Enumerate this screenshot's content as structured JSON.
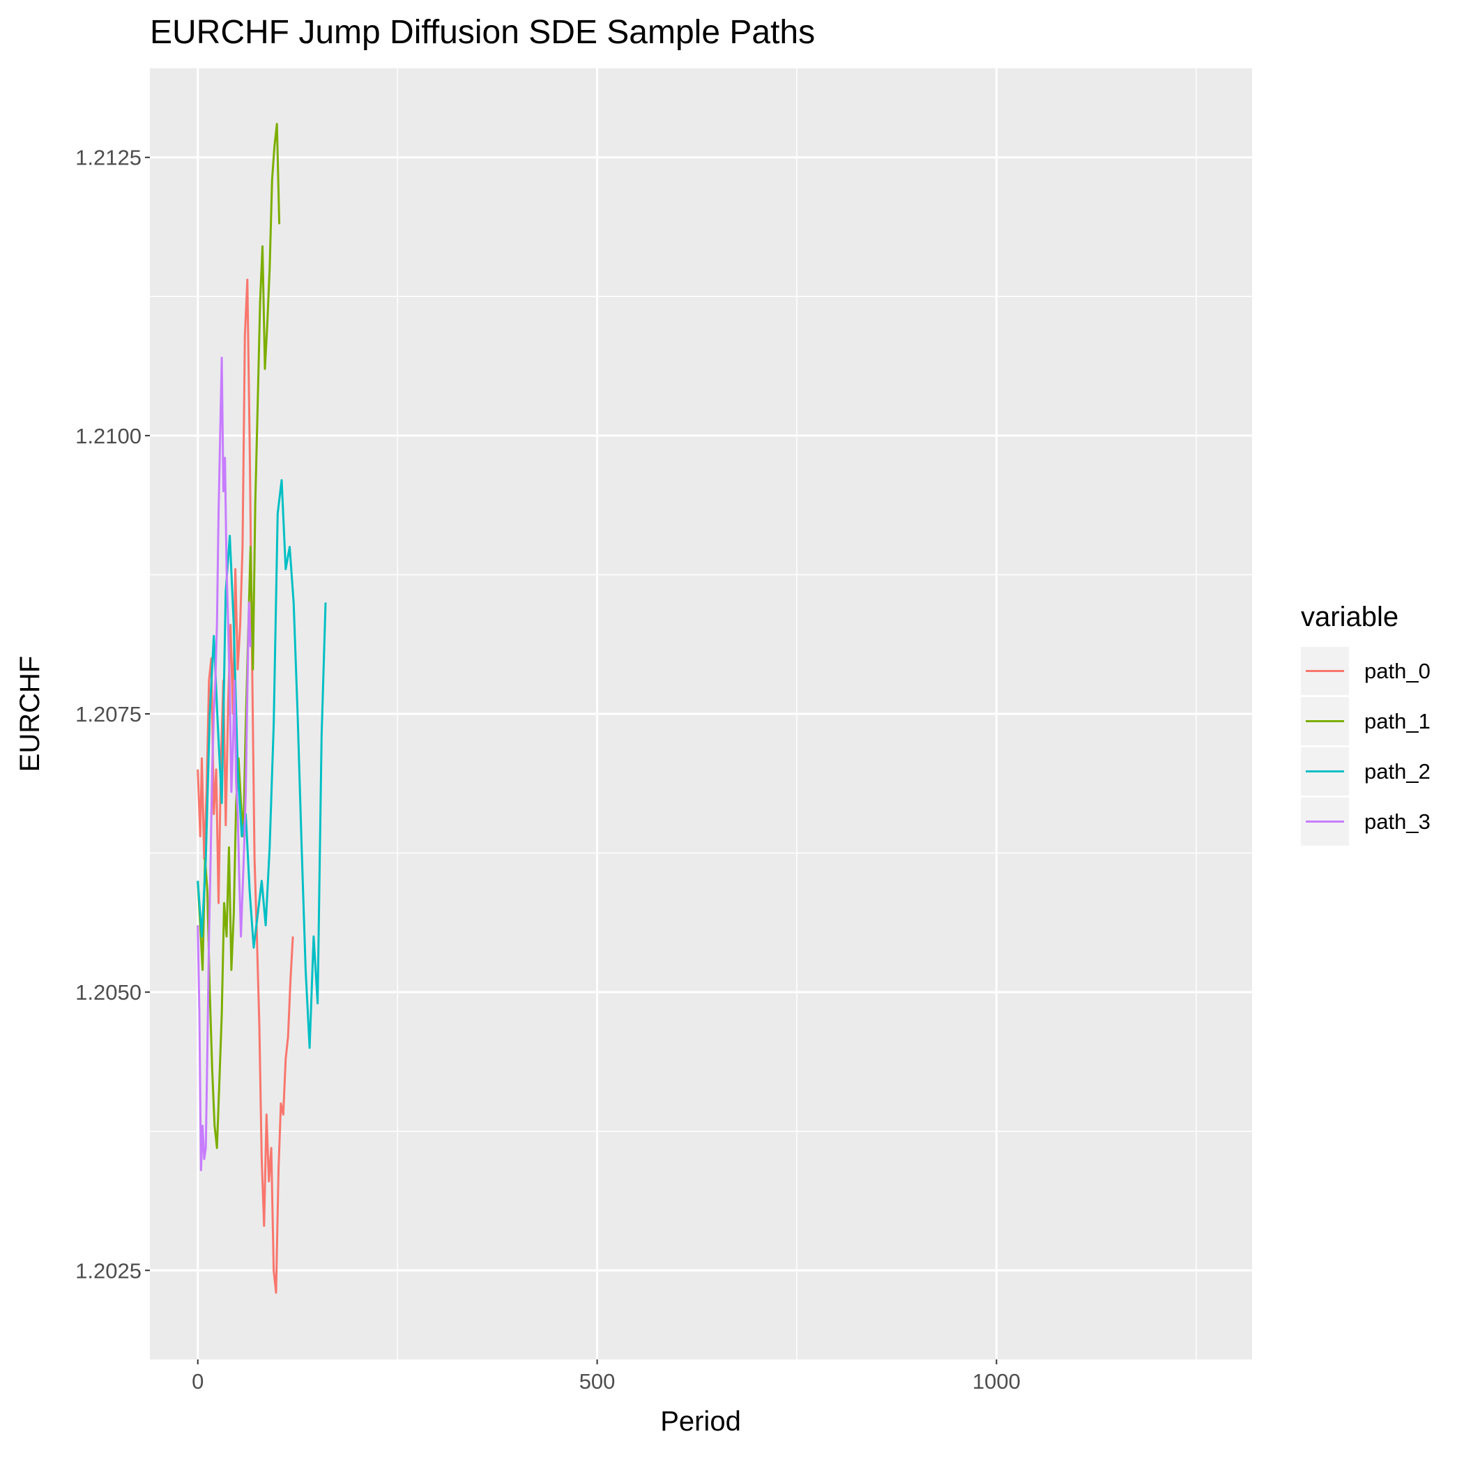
{
  "chart_data": {
    "type": "line",
    "title": "EURCHF Jump Diffusion SDE Sample Paths",
    "xlabel": "Period",
    "ylabel": "EURCHF",
    "xlim": [
      -60,
      1320
    ],
    "ylim": [
      1.2017,
      1.2133
    ],
    "x_ticks": [
      {
        "value": 0,
        "label": "0"
      },
      {
        "value": 500,
        "label": "500"
      },
      {
        "value": 1000,
        "label": "1000"
      }
    ],
    "y_ticks": [
      {
        "value": 1.2025,
        "label": "1.2025"
      },
      {
        "value": 1.205,
        "label": "1.2050"
      },
      {
        "value": 1.2075,
        "label": "1.2075"
      },
      {
        "value": 1.21,
        "label": "1.2100"
      },
      {
        "value": 1.2125,
        "label": "1.2125"
      }
    ],
    "grid": true,
    "legend_position": "right",
    "legend_title": "variable",
    "series": [
      {
        "name": "path_0",
        "color": "#F8766D",
        "x": [
          0,
          3,
          5,
          8,
          11,
          14,
          17,
          20,
          23,
          26,
          29,
          32,
          35,
          38,
          41,
          44,
          47,
          50,
          53,
          56,
          59,
          62,
          65,
          68,
          71,
          74,
          77,
          80,
          83,
          86,
          89,
          92,
          95,
          98,
          101,
          104,
          107,
          110,
          113,
          116,
          119
        ],
        "y": [
          1.207,
          1.2064,
          1.2071,
          1.2062,
          1.2068,
          1.2078,
          1.208,
          1.2066,
          1.207,
          1.2058,
          1.2071,
          1.2078,
          1.2065,
          1.2076,
          1.2083,
          1.2075,
          1.2088,
          1.2079,
          1.2083,
          1.209,
          1.2109,
          1.2114,
          1.2099,
          1.208,
          1.2062,
          1.2055,
          1.2047,
          1.2035,
          1.2029,
          1.2039,
          1.2033,
          1.2036,
          1.2025,
          1.2023,
          1.2034,
          1.204,
          1.2039,
          1.2044,
          1.2046,
          1.2051,
          1.2055
        ]
      },
      {
        "name": "path_1",
        "color": "#7CAE00",
        "x": [
          0,
          3,
          6,
          9,
          12,
          15,
          18,
          21,
          24,
          27,
          30,
          33,
          36,
          39,
          42,
          45,
          48,
          51,
          54,
          57,
          60,
          63,
          66,
          69,
          72,
          75,
          78,
          81,
          84,
          87,
          90,
          93,
          96,
          99,
          102
        ],
        "y": [
          1.206,
          1.2056,
          1.2052,
          1.2062,
          1.2059,
          1.205,
          1.2043,
          1.2038,
          1.2036,
          1.2042,
          1.2048,
          1.2058,
          1.2055,
          1.2063,
          1.2052,
          1.2057,
          1.2067,
          1.2071,
          1.2067,
          1.2064,
          1.2074,
          1.2082,
          1.209,
          1.2079,
          1.2094,
          1.2103,
          1.2112,
          1.2117,
          1.2106,
          1.211,
          1.2115,
          1.2123,
          1.2126,
          1.2128,
          1.2119
        ]
      },
      {
        "name": "path_2",
        "color": "#00BFC4",
        "x": [
          0,
          5,
          10,
          15,
          20,
          25,
          30,
          35,
          40,
          45,
          50,
          55,
          60,
          65,
          70,
          75,
          80,
          85,
          90,
          95,
          100,
          105,
          110,
          115,
          120,
          125,
          130,
          135,
          140,
          145,
          150,
          155,
          160
        ],
        "y": [
          1.206,
          1.2055,
          1.2062,
          1.2075,
          1.2082,
          1.2074,
          1.2067,
          1.2086,
          1.2091,
          1.2083,
          1.207,
          1.2064,
          1.2066,
          1.2059,
          1.2054,
          1.2057,
          1.206,
          1.2056,
          1.2063,
          1.2074,
          1.2093,
          1.2096,
          1.2088,
          1.209,
          1.2085,
          1.2075,
          1.2063,
          1.2052,
          1.2045,
          1.2055,
          1.2049,
          1.2073,
          1.2085
        ]
      },
      {
        "name": "path_3",
        "color": "#C77CFF",
        "x": [
          0,
          2,
          4,
          6,
          8,
          10,
          12,
          14,
          16,
          18,
          20,
          22,
          24,
          26,
          28,
          30,
          32,
          34,
          36,
          38,
          40,
          42,
          44,
          46,
          48,
          50,
          52,
          54,
          56,
          58,
          60,
          62,
          64,
          66
        ],
        "y": [
          1.2056,
          1.2048,
          1.2034,
          1.2038,
          1.2035,
          1.2036,
          1.2045,
          1.2055,
          1.2062,
          1.207,
          1.2075,
          1.2078,
          1.2083,
          1.2093,
          1.21,
          1.2107,
          1.2095,
          1.2098,
          1.2088,
          1.2083,
          1.2077,
          1.2068,
          1.2072,
          1.2078,
          1.2069,
          1.2066,
          1.206,
          1.2055,
          1.2059,
          1.2063,
          1.2068,
          1.2077,
          1.2085,
          1.2081
        ]
      }
    ]
  }
}
